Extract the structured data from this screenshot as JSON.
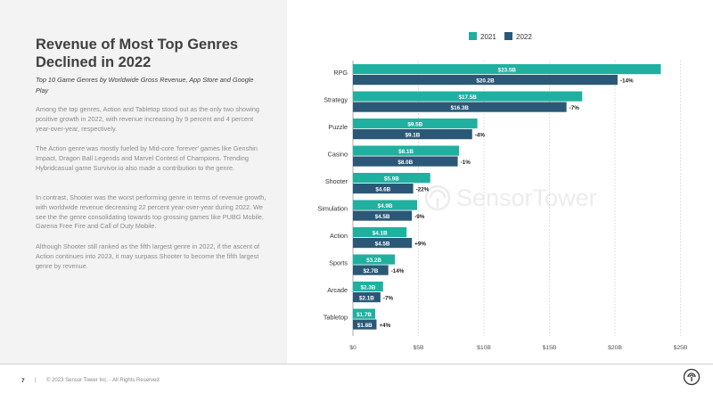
{
  "title": "Revenue of Most Top Genres Declined in 2022",
  "subtitle": "Top 10 Game Genres by Worldwide Gross Revenue, App Store and Google Play",
  "paragraphs": [
    "Among the top genres, Action and Tabletop stood out as the only two showing positive growth in 2022, with revenue increasing by 9 percent and 4 percent year-over-year, respectively.",
    "The Action genre was mostly fueled by Mid-core 'forever' games like Genshin Impact, Dragon Ball Legends and Marvel Contest of Champions. Trending Hybridcasual game Survivor.io also made a contribution to the genre.",
    "In contrast, Shooter was the worst performing genre in terms of revenue growth, with worldwide revenue decreasing 22 percent year-over-year during 2022. We see the the genre consolidating towards top grossing games like PUBG Mobile, Garena Free Fire and Call of Duty Mobile.",
    "Although Shooter still ranked as the fifth largest genre in 2022, if the ascent of Action continues into 2023, it may surpass Shooter to become the fifth largest genre by revenue."
  ],
  "footer": {
    "page_number": "7",
    "separator": "|",
    "copyright": "© 2023 Sensor Tower Inc. - All Rights Reserved"
  },
  "watermark": "SensorTower",
  "colors": {
    "series_2021": "#1fb0a0",
    "series_2022": "#2b5876",
    "grid": "#cccccc"
  },
  "chart_data": {
    "type": "bar",
    "orientation": "horizontal",
    "categories": [
      "RPG",
      "Strategy",
      "Puzzle",
      "Casino",
      "Shooter",
      "Simulation",
      "Action",
      "Sports",
      "Arcade",
      "Tabletop"
    ],
    "series": [
      {
        "name": "2021",
        "values": [
          23.5,
          17.5,
          9.5,
          8.1,
          5.9,
          4.9,
          4.1,
          3.2,
          2.3,
          1.7
        ],
        "labels": [
          "$23.5B",
          "$17.5B",
          "$9.5B",
          "$8.1B",
          "$5.9B",
          "$4.9B",
          "$4.1B",
          "$3.2B",
          "$2.3B",
          "$1.7B"
        ]
      },
      {
        "name": "2022",
        "values": [
          20.2,
          16.3,
          9.1,
          8.0,
          4.6,
          4.5,
          4.5,
          2.7,
          2.1,
          1.8
        ],
        "labels": [
          "$20.2B",
          "$16.3B",
          "$9.1B",
          "$8.0B",
          "$4.6B",
          "$4.5B",
          "$4.5B",
          "$2.7B",
          "$2.1B",
          "$1.8B"
        ]
      }
    ],
    "changes": [
      "-14%",
      "-7%",
      "-4%",
      "-1%",
      "-22%",
      "-9%",
      "+9%",
      "-14%",
      "-7%",
      "+4%"
    ],
    "x_ticks": [
      0,
      5,
      10,
      15,
      20,
      25
    ],
    "x_tick_labels": [
      "$0",
      "$5B",
      "$10B",
      "$15B",
      "$20B",
      "$25B"
    ],
    "xlim": [
      0,
      25
    ],
    "legend_position": "top",
    "grid": true
  }
}
